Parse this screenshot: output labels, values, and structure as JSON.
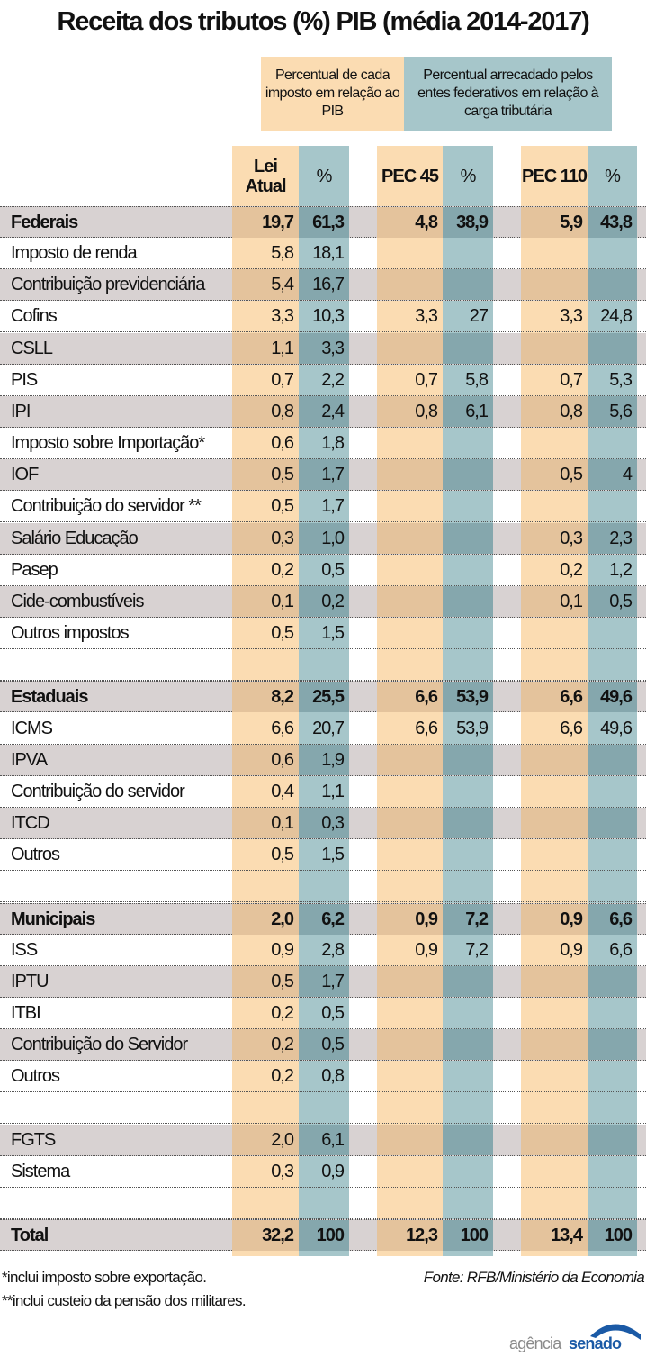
{
  "title": "Receita dos tributos (%) PIB (média 2014-2017)",
  "legend": {
    "pib": "Percentual de cada imposto em relação ao PIB",
    "carga": "Percentual arrecadado pelos entes federativos em relação à carga tributária"
  },
  "columns": [
    "Lei Atual",
    "%",
    "PEC 45",
    "%",
    "PEC 110",
    "%"
  ],
  "colors": {
    "orange": "#fbdcb2",
    "teal": "#a6c6ca",
    "shade": "#d8d2d2"
  },
  "chart_data": {
    "type": "table",
    "title": "Receita dos tributos (%) PIB (média 2014-2017)",
    "columns": [
      "Lei Atual",
      "%",
      "PEC 45",
      "%",
      "PEC 110",
      "%"
    ],
    "rows": [
      {
        "label": "Federais",
        "values": [
          "19,7",
          "61,3",
          "4,8",
          "38,9",
          "5,9",
          "43,8"
        ],
        "bold": true
      },
      {
        "label": "Imposto de renda",
        "values": [
          "5,8",
          "18,1",
          "",
          "",
          "",
          ""
        ]
      },
      {
        "label": "Contribuição previdenciária",
        "values": [
          "5,4",
          "16,7",
          "",
          "",
          "",
          ""
        ]
      },
      {
        "label": "Cofins",
        "values": [
          "3,3",
          "10,3",
          "3,3",
          "27",
          "3,3",
          "24,8"
        ]
      },
      {
        "label": "CSLL",
        "values": [
          "1,1",
          "3,3",
          "",
          "",
          "",
          ""
        ]
      },
      {
        "label": "PIS",
        "values": [
          "0,7",
          "2,2",
          "0,7",
          "5,8",
          "0,7",
          "5,3"
        ]
      },
      {
        "label": "IPI",
        "values": [
          "0,8",
          "2,4",
          "0,8",
          "6,1",
          "0,8",
          "5,6"
        ]
      },
      {
        "label": "Imposto sobre Importação*",
        "values": [
          "0,6",
          "1,8",
          "",
          "",
          "",
          ""
        ]
      },
      {
        "label": "IOF",
        "values": [
          "0,5",
          "1,7",
          "",
          "",
          "0,5",
          "4"
        ]
      },
      {
        "label": "Contribuição do servidor **",
        "values": [
          "0,5",
          "1,7",
          "",
          "",
          "",
          ""
        ]
      },
      {
        "label": "Salário Educação",
        "values": [
          "0,3",
          "1,0",
          "",
          "",
          "0,3",
          "2,3"
        ]
      },
      {
        "label": "Pasep",
        "values": [
          "0,2",
          "0,5",
          "",
          "",
          "0,2",
          "1,2"
        ]
      },
      {
        "label": "Cide-combustíveis",
        "values": [
          "0,1",
          "0,2",
          "",
          "",
          "0,1",
          "0,5"
        ]
      },
      {
        "label": "Outros impostos",
        "values": [
          "0,5",
          "1,5",
          "",
          "",
          "",
          ""
        ]
      },
      {
        "label": "",
        "values": [
          "",
          "",
          "",
          "",
          "",
          ""
        ]
      },
      {
        "label": "Estaduais",
        "values": [
          "8,2",
          "25,5",
          "6,6",
          "53,9",
          "6,6",
          "49,6"
        ],
        "bold": true
      },
      {
        "label": "ICMS",
        "values": [
          "6,6",
          "20,7",
          "6,6",
          "53,9",
          "6,6",
          "49,6"
        ]
      },
      {
        "label": "IPVA",
        "values": [
          "0,6",
          "1,9",
          "",
          "",
          "",
          ""
        ]
      },
      {
        "label": "Contribuição do servidor",
        "values": [
          "0,4",
          "1,1",
          "",
          "",
          "",
          ""
        ]
      },
      {
        "label": "ITCD",
        "values": [
          "0,1",
          "0,3",
          "",
          "",
          "",
          ""
        ]
      },
      {
        "label": "Outros",
        "values": [
          "0,5",
          "1,5",
          "",
          "",
          "",
          ""
        ]
      },
      {
        "label": "",
        "values": [
          "",
          "",
          "",
          "",
          "",
          ""
        ]
      },
      {
        "label": "Municipais",
        "values": [
          "2,0",
          "6,2",
          "0,9",
          "7,2",
          "0,9",
          "6,6"
        ],
        "bold": true
      },
      {
        "label": "ISS",
        "values": [
          "0,9",
          "2,8",
          "0,9",
          "7,2",
          "0,9",
          "6,6"
        ]
      },
      {
        "label": "IPTU",
        "values": [
          "0,5",
          "1,7",
          "",
          "",
          "",
          ""
        ]
      },
      {
        "label": "ITBI",
        "values": [
          "0,2",
          "0,5",
          "",
          "",
          "",
          ""
        ]
      },
      {
        "label": "Contribuição do Servidor",
        "values": [
          "0,2",
          "0,5",
          "",
          "",
          "",
          ""
        ]
      },
      {
        "label": "Outros",
        "values": [
          "0,2",
          "0,8",
          "",
          "",
          "",
          ""
        ]
      },
      {
        "label": "",
        "values": [
          "",
          "",
          "",
          "",
          "",
          ""
        ]
      },
      {
        "label": "FGTS",
        "values": [
          "2,0",
          "6,1",
          "",
          "",
          "",
          ""
        ]
      },
      {
        "label": "Sistema",
        "values": [
          "0,3",
          "0,9",
          "",
          "",
          "",
          ""
        ]
      },
      {
        "label": "",
        "values": [
          "",
          "",
          "",
          "",
          "",
          ""
        ]
      },
      {
        "label": "Total",
        "values": [
          "32,2",
          "100",
          "12,3",
          "100",
          "13,4",
          "100"
        ],
        "bold": true
      }
    ]
  },
  "notes": [
    "*inclui imposto sobre exportação.",
    "**inclui custeio da pensão dos militares."
  ],
  "source": "Fonte: RFB/Ministério da Economia",
  "logo": {
    "text1": "agência",
    "text2": "senado"
  }
}
